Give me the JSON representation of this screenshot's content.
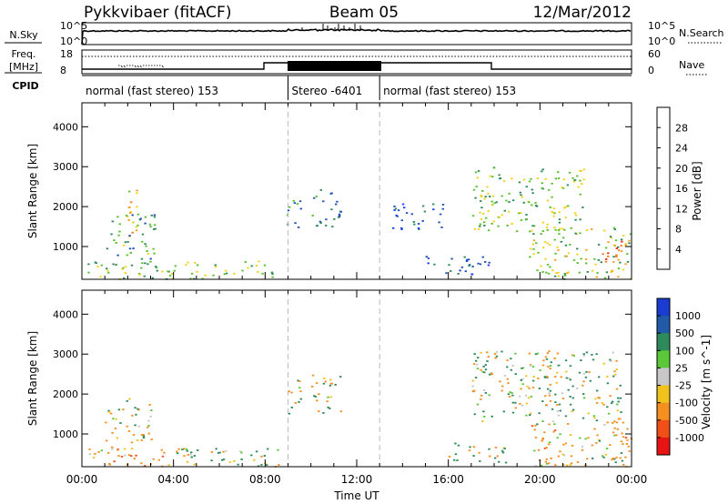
{
  "header": {
    "radar": "Pykkvibaer (fitACF)",
    "beam": "Beam 05",
    "date": "12/Mar/2012"
  },
  "noise_panel": {
    "left_label": "N.Sky",
    "right_label": "N.Search",
    "left_ticks": [
      "10^5",
      "10^0"
    ],
    "right_ticks": [
      "10^5",
      "10^0"
    ]
  },
  "freq_panel": {
    "left_label_line1": "Freq.",
    "left_label_line2": "[MHz]",
    "right_label": "Nave",
    "left_ticks": [
      "18",
      "8"
    ],
    "right_ticks": [
      "60",
      "0"
    ]
  },
  "cpid": {
    "label": "CPID",
    "segments": [
      {
        "text": "normal (fast stereo) 153",
        "start_hour": 0,
        "end_hour": 9
      },
      {
        "text": "Stereo -6401",
        "start_hour": 9,
        "end_hour": 13
      },
      {
        "text": "normal (fast stereo) 153",
        "start_hour": 13,
        "end_hour": 24
      }
    ]
  },
  "power_panel": {
    "ylabel": "Slant Range [km]",
    "yticks": [
      "1000",
      "2000",
      "3000",
      "4000"
    ],
    "colorbar_label": "Power [dB]",
    "colorbar_ticks": [
      "4",
      "8",
      "12",
      "16",
      "20",
      "24",
      "28"
    ],
    "colorbar_colors": [
      "#1a3cff",
      "#2050b8",
      "#2e8a5a",
      "#58c030",
      "#f2d21c",
      "#f5a020",
      "#f57a18",
      "#ee2a16"
    ]
  },
  "velocity_panel": {
    "ylabel": "Slant Range [km]",
    "yticks": [
      "1000",
      "2000",
      "3000",
      "4000"
    ],
    "colorbar_label": "Velocity [m s^-1]",
    "colorbar_ticks": [
      "1000",
      "500",
      "100",
      "25",
      "-25",
      "-100",
      "-500",
      "-1000"
    ],
    "colorbar_colors": [
      "#1a3cd0",
      "#205aa8",
      "#2e8a5a",
      "#5ac838",
      "#c8c8c8",
      "#f2c21c",
      "#f59020",
      "#f05018",
      "#e81414"
    ]
  },
  "xaxis": {
    "label": "Time UT",
    "ticks": [
      "00:00",
      "04:00",
      "08:00",
      "12:00",
      "16:00",
      "20:00",
      "00:00"
    ]
  },
  "chart_data": [
    {
      "type": "heatmap",
      "title": "",
      "xlabel": "Time UT",
      "ylabel": "Slant Range [km]",
      "xlim": [
        0,
        24
      ],
      "ylim": [
        180,
        4600
      ],
      "color_label": "Power [dB]",
      "color_range": [
        0,
        32
      ],
      "regions": [
        {
          "t0": 0.2,
          "t1": 8.6,
          "r0": 200,
          "r1": 650,
          "value": 14
        },
        {
          "t0": 1.0,
          "t1": 3.2,
          "r0": 700,
          "r1": 1900,
          "value": 12
        },
        {
          "t0": 2.0,
          "t1": 2.6,
          "r0": 1300,
          "r1": 2500,
          "value": 20
        },
        {
          "t0": 8.9,
          "t1": 9.6,
          "r0": 1500,
          "r1": 2400,
          "value": 10
        },
        {
          "t0": 10.0,
          "t1": 11.3,
          "r0": 1500,
          "r1": 2500,
          "value": 8
        },
        {
          "t0": 13.5,
          "t1": 15.8,
          "r0": 1400,
          "r1": 2100,
          "value": 6
        },
        {
          "t0": 15.0,
          "t1": 18.0,
          "r0": 300,
          "r1": 800,
          "value": 6
        },
        {
          "t0": 17.0,
          "t1": 21.9,
          "r0": 1400,
          "r1": 3000,
          "value": 14
        },
        {
          "t0": 19.5,
          "t1": 24.0,
          "r0": 200,
          "r1": 1500,
          "value": 16
        },
        {
          "t0": 22.6,
          "t1": 23.8,
          "r0": 400,
          "r1": 1200,
          "value": 24
        }
      ]
    },
    {
      "type": "heatmap",
      "title": "",
      "xlabel": "Time UT",
      "ylabel": "Slant Range [km]",
      "xlim": [
        0,
        24
      ],
      "ylim": [
        180,
        4600
      ],
      "color_label": "Velocity [m s^-1]",
      "color_range": [
        -1000,
        1000
      ],
      "regions": [
        {
          "t0": 0.2,
          "t1": 4.2,
          "r0": 200,
          "r1": 700,
          "value": -300
        },
        {
          "t0": 4.0,
          "t1": 8.6,
          "r0": 200,
          "r1": 700,
          "value": 80
        },
        {
          "t0": 1.0,
          "t1": 3.0,
          "r0": 800,
          "r1": 1900,
          "value": -100
        },
        {
          "t0": 8.9,
          "t1": 9.6,
          "r0": 1500,
          "r1": 2400,
          "value": 0
        },
        {
          "t0": 10.0,
          "t1": 11.3,
          "r0": 1500,
          "r1": 2500,
          "value": 40
        },
        {
          "t0": 16.0,
          "t1": 18.5,
          "r0": 300,
          "r1": 800,
          "value": 60
        },
        {
          "t0": 17.0,
          "t1": 23.5,
          "r0": 1300,
          "r1": 3100,
          "value": 0
        },
        {
          "t0": 19.5,
          "t1": 24.0,
          "r0": 200,
          "r1": 1400,
          "value": -200
        }
      ]
    }
  ]
}
